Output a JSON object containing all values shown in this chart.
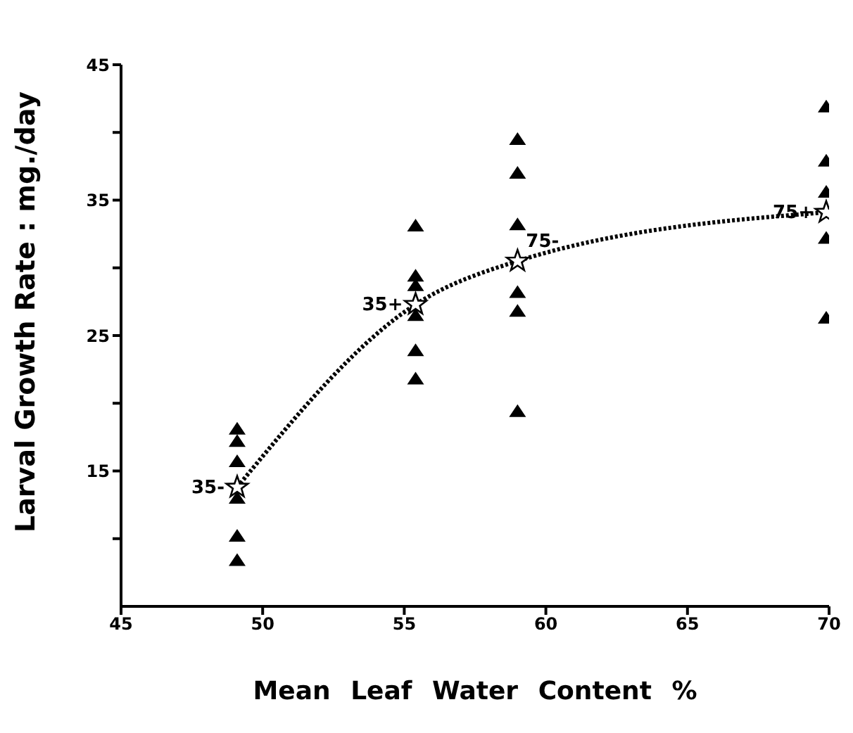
{
  "chart_data": {
    "type": "scatter",
    "xlabel": "Mean Leaf Water Content %",
    "ylabel": "Larval Growth Rate : mg./day",
    "xlim": [
      45,
      70
    ],
    "xticks": [
      45,
      50,
      55,
      60,
      65,
      70
    ],
    "ylim": [
      5,
      45
    ],
    "yticks": [
      {
        "value": 10,
        "label": null
      },
      15,
      {
        "value": 20,
        "label": null
      },
      25,
      {
        "value": 30,
        "label": null
      },
      35,
      {
        "value": 40,
        "label": null
      },
      45
    ],
    "series": [
      {
        "marker": "triangle",
        "color": "#000000",
        "x": [
          49.1,
          49.1,
          49.1,
          49.1,
          49.1,
          49.1,
          55.4,
          55.4,
          55.4,
          55.4,
          55.4,
          55.4,
          59,
          59,
          59,
          59,
          59,
          59,
          69.9,
          69.9,
          69.9,
          69.9,
          69.9
        ],
        "values": [
          18.1,
          17.2,
          15.7,
          13,
          10.2,
          8.4,
          33.1,
          29.4,
          28.7,
          26.5,
          23.9,
          21.8,
          39.5,
          37,
          33.2,
          28.2,
          26.8,
          19.4,
          41.9,
          37.9,
          35.6,
          32.2,
          26.3
        ]
      },
      {
        "type": "line",
        "line_style": "dotted",
        "marker": "none",
        "color": "#000000",
        "x": [
          49.1,
          55.4,
          59,
          69.9
        ],
        "values": [
          13.8,
          27.3,
          30.5,
          34.1
        ]
      },
      {
        "marker": "star",
        "color": "#000000",
        "x": [
          49.1,
          55.4,
          59,
          69.9
        ],
        "values": [
          13.8,
          27.3,
          30.5,
          34.1
        ]
      }
    ],
    "annotations": [
      {
        "text": "35-",
        "x": 49.1,
        "y": 13.8
      },
      {
        "text": "35+",
        "x": 55.4,
        "y": 27.3
      },
      {
        "text": "75-",
        "x": 59,
        "y": 30.5
      },
      {
        "text": "75+",
        "x": 69.9,
        "y": 34.1
      }
    ]
  }
}
